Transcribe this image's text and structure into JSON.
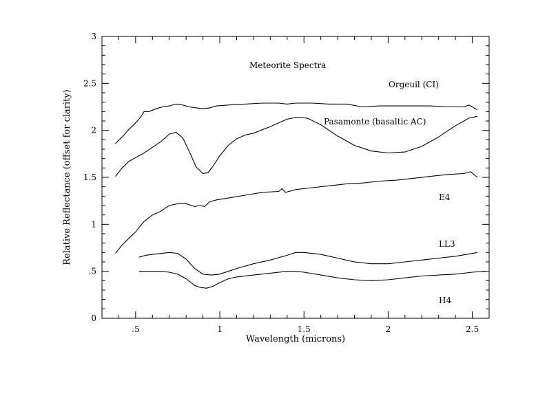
{
  "chart_data": {
    "type": "line",
    "title": "Meteorite Spectra",
    "xlabel": "Wavelength (microns)",
    "ylabel": "Relative Reflectance (offset for clarity)",
    "xlim": [
      0.3,
      2.6
    ],
    "ylim": [
      0,
      3
    ],
    "xticks": [
      0.5,
      1,
      1.5,
      2,
      2.5
    ],
    "xtick_labels": [
      ".5",
      "1",
      "1.5",
      "2",
      "2.5"
    ],
    "yticks": [
      0,
      0.5,
      1,
      1.5,
      2,
      2.5,
      3
    ],
    "ytick_labels": [
      "0",
      ".5",
      "1",
      "1.5",
      "2",
      "2.5",
      "3"
    ],
    "grid": false,
    "series": [
      {
        "name": "Orgeuil (CI)",
        "label": "Orgeuil (CI)",
        "x": [
          0.38,
          0.42,
          0.46,
          0.5,
          0.53,
          0.55,
          0.58,
          0.62,
          0.66,
          0.7,
          0.74,
          0.78,
          0.82,
          0.86,
          0.9,
          0.94,
          0.98,
          1.05,
          1.15,
          1.25,
          1.35,
          1.4,
          1.45,
          1.55,
          1.65,
          1.75,
          1.85,
          1.95,
          2.05,
          2.15,
          2.25,
          2.35,
          2.45,
          2.48,
          2.5,
          2.53
        ],
        "values": [
          1.86,
          1.93,
          2.01,
          2.08,
          2.14,
          2.2,
          2.2,
          2.23,
          2.25,
          2.26,
          2.28,
          2.27,
          2.25,
          2.24,
          2.23,
          2.24,
          2.26,
          2.27,
          2.28,
          2.29,
          2.29,
          2.28,
          2.29,
          2.29,
          2.28,
          2.28,
          2.25,
          2.26,
          2.26,
          2.26,
          2.26,
          2.25,
          2.25,
          2.27,
          2.25,
          2.22
        ]
      },
      {
        "name": "Pasamonte (basaltic AC)",
        "label": "Pasamonte (basaltic AC)",
        "x": [
          0.38,
          0.42,
          0.46,
          0.5,
          0.55,
          0.6,
          0.65,
          0.7,
          0.74,
          0.78,
          0.82,
          0.86,
          0.9,
          0.93,
          0.96,
          1.0,
          1.05,
          1.1,
          1.15,
          1.2,
          1.3,
          1.4,
          1.46,
          1.52,
          1.6,
          1.7,
          1.8,
          1.9,
          2.0,
          2.1,
          2.2,
          2.3,
          2.4,
          2.48,
          2.53
        ],
        "values": [
          1.51,
          1.6,
          1.67,
          1.71,
          1.76,
          1.82,
          1.88,
          1.96,
          1.98,
          1.92,
          1.77,
          1.61,
          1.54,
          1.55,
          1.62,
          1.73,
          1.84,
          1.91,
          1.95,
          1.97,
          2.04,
          2.12,
          2.14,
          2.13,
          2.06,
          1.94,
          1.84,
          1.78,
          1.76,
          1.77,
          1.83,
          1.93,
          2.05,
          2.13,
          2.15
        ]
      },
      {
        "name": "E4",
        "label": "E4",
        "x": [
          0.38,
          0.42,
          0.46,
          0.5,
          0.55,
          0.6,
          0.65,
          0.7,
          0.75,
          0.8,
          0.85,
          0.88,
          0.91,
          0.94,
          0.98,
          1.05,
          1.15,
          1.25,
          1.35,
          1.37,
          1.39,
          1.45,
          1.55,
          1.65,
          1.75,
          1.85,
          1.95,
          2.05,
          2.15,
          2.25,
          2.35,
          2.45,
          2.49,
          2.51,
          2.53
        ],
        "values": [
          0.69,
          0.78,
          0.85,
          0.92,
          1.03,
          1.1,
          1.14,
          1.2,
          1.22,
          1.22,
          1.19,
          1.2,
          1.19,
          1.24,
          1.26,
          1.28,
          1.31,
          1.34,
          1.35,
          1.38,
          1.34,
          1.37,
          1.39,
          1.41,
          1.43,
          1.44,
          1.46,
          1.47,
          1.49,
          1.51,
          1.53,
          1.54,
          1.56,
          1.53,
          1.5
        ]
      },
      {
        "name": "LL3",
        "label": "LL3",
        "x": [
          0.52,
          0.56,
          0.6,
          0.65,
          0.7,
          0.75,
          0.8,
          0.85,
          0.9,
          0.95,
          1.0,
          1.05,
          1.1,
          1.2,
          1.3,
          1.4,
          1.45,
          1.5,
          1.6,
          1.7,
          1.8,
          1.9,
          2.0,
          2.1,
          2.2,
          2.3,
          2.4,
          2.5,
          2.53
        ],
        "values": [
          0.65,
          0.67,
          0.68,
          0.69,
          0.7,
          0.69,
          0.63,
          0.53,
          0.47,
          0.46,
          0.47,
          0.5,
          0.53,
          0.58,
          0.62,
          0.67,
          0.7,
          0.7,
          0.68,
          0.64,
          0.6,
          0.58,
          0.58,
          0.6,
          0.62,
          0.64,
          0.66,
          0.69,
          0.7
        ]
      },
      {
        "name": "H4",
        "label": "H4",
        "x": [
          0.52,
          0.56,
          0.6,
          0.65,
          0.7,
          0.75,
          0.8,
          0.85,
          0.88,
          0.92,
          0.96,
          1.0,
          1.05,
          1.1,
          1.2,
          1.3,
          1.4,
          1.45,
          1.5,
          1.6,
          1.7,
          1.8,
          1.9,
          2.0,
          2.1,
          2.2,
          2.3,
          2.4,
          2.5,
          2.58
        ],
        "values": [
          0.5,
          0.5,
          0.5,
          0.5,
          0.49,
          0.47,
          0.42,
          0.35,
          0.33,
          0.32,
          0.34,
          0.38,
          0.42,
          0.44,
          0.46,
          0.48,
          0.5,
          0.5,
          0.49,
          0.46,
          0.43,
          0.41,
          0.4,
          0.41,
          0.43,
          0.45,
          0.46,
          0.47,
          0.49,
          0.5
        ]
      }
    ]
  },
  "labels": {
    "title": "Meteorite Spectra",
    "xlabel": "Wavelength (microns)",
    "ylabel": "Relative Reflectance (offset for clarity)",
    "orgeuil": "Orgeuil (CI)",
    "pasamonte": "Pasamonte (basaltic AC)",
    "e4": "E4",
    "ll3": "LL3",
    "h4": "H4"
  }
}
